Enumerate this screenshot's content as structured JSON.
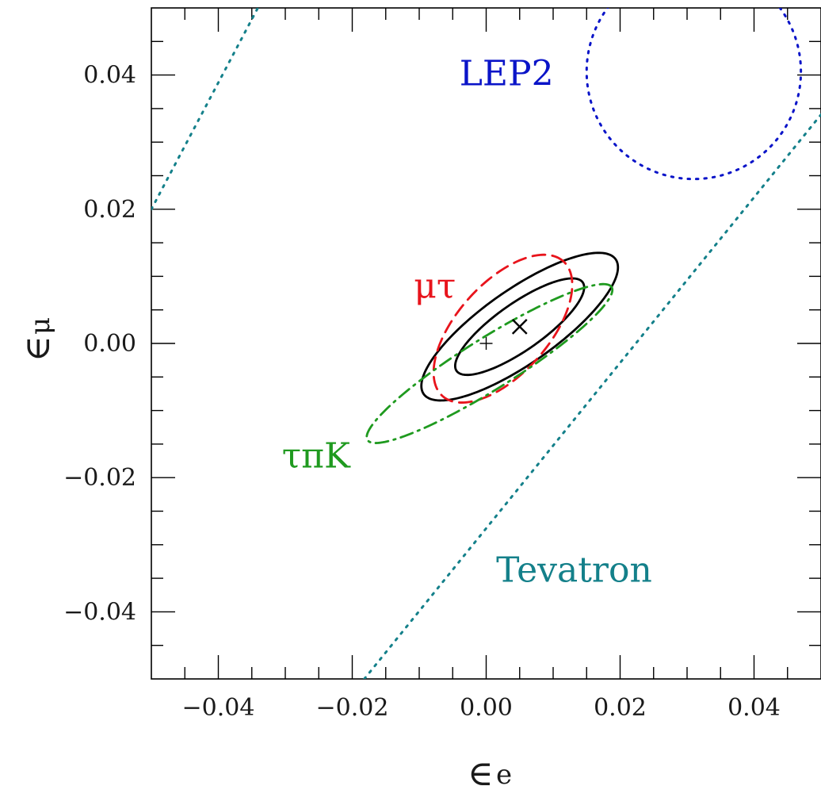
{
  "chart_data": {
    "type": "line",
    "xlabel": "∈",
    "xlabel_sub": "e",
    "ylabel": "∈",
    "ylabel_sub": "μ",
    "xlim": [
      -0.05,
      0.05
    ],
    "ylim": [
      -0.05,
      0.05
    ],
    "x_ticks": [
      -0.04,
      -0.02,
      0.0,
      0.02,
      0.04
    ],
    "x_tick_labels": [
      "−0.04",
      "−0.02",
      "0.00",
      "0.02",
      "0.04"
    ],
    "y_ticks": [
      -0.04,
      -0.02,
      0.0,
      0.02,
      0.04
    ],
    "y_tick_labels": [
      "−0.04",
      "−0.02",
      "0.00",
      "0.02",
      "0.04"
    ],
    "grid": false,
    "best_fit": {
      "x": 0.005,
      "y": 0.0025,
      "marker": "×"
    },
    "origin_marker": {
      "x": 0.0,
      "y": 0.0,
      "marker": "+"
    },
    "contours": [
      {
        "name": "",
        "color": "#000000",
        "style": "solid",
        "shape": "ellipse",
        "center": [
          0.005,
          0.0025
        ],
        "semi_major": 0.0115,
        "semi_minor": 0.0035,
        "angle_deg": 35
      },
      {
        "name": "",
        "color": "#000000",
        "style": "solid",
        "shape": "ellipse",
        "center": [
          0.005,
          0.0025
        ],
        "semi_major": 0.0175,
        "semi_minor": 0.0055,
        "angle_deg": 35
      },
      {
        "name": "μτ",
        "color": "#e8141c",
        "style": "dashed",
        "shape": "ellipse",
        "center": [
          0.0025,
          0.0022
        ],
        "semi_major": 0.0135,
        "semi_minor": 0.0068,
        "angle_deg": 48
      },
      {
        "name": "τπK",
        "color": "#1f9a1f",
        "style": "dashdot",
        "shape": "ellipse",
        "center": [
          0.0005,
          -0.003
        ],
        "semi_major": 0.0215,
        "semi_minor": 0.0038,
        "angle_deg": 32
      },
      {
        "name": "LEP2",
        "color": "#0a14c8",
        "style": "dotted",
        "shape": "circle",
        "center": [
          0.031,
          0.0405
        ],
        "radius": 0.016
      },
      {
        "name": "Tevatron",
        "color": "#14808a",
        "style": "dotted",
        "shape": "band",
        "slope": 1.5,
        "upper_line": [
          [
            -0.05,
            0.02
          ],
          [
            -0.0341,
            0.05
          ]
        ],
        "lower_line": [
          [
            -0.0182,
            -0.05
          ],
          [
            0.05,
            0.0341
          ]
        ]
      }
    ],
    "labels": [
      {
        "text": "LEP2",
        "color": "#0a14c8",
        "x": -0.004,
        "y": 0.0385
      },
      {
        "text": "μτ",
        "color": "#e8141c",
        "x": -0.0108,
        "y": 0.0068
      },
      {
        "text": "τπK",
        "color": "#1f9a1f",
        "x": -0.0305,
        "y": -0.0185
      },
      {
        "text": "Tevatron",
        "color": "#14808a",
        "x": 0.0015,
        "y": -0.0355
      }
    ]
  }
}
